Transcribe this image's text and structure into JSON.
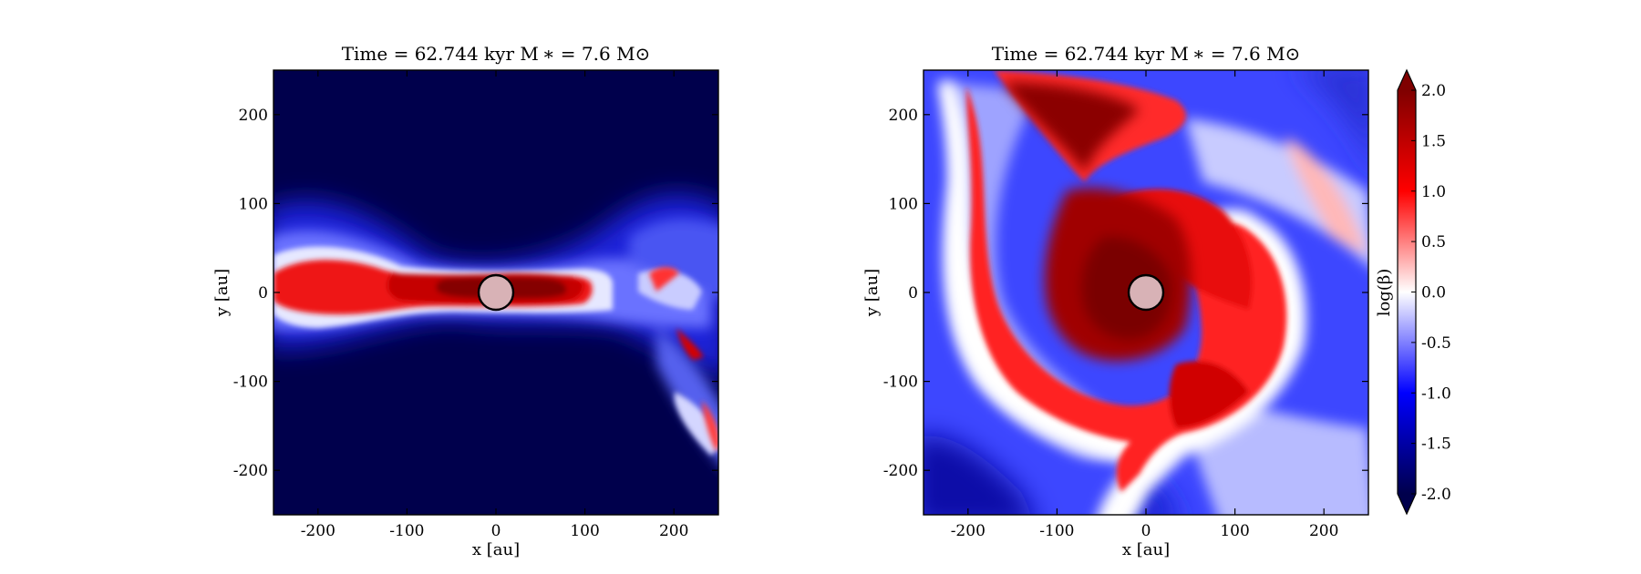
{
  "chart_data": [
    {
      "type": "heatmap",
      "title": "Time = 62.744 kyr    M ∗ = 7.6 M⊙",
      "xlabel": "x [au]",
      "ylabel": "y [au]",
      "xlim": [
        -250,
        250
      ],
      "ylim": [
        -250,
        250
      ],
      "xticks": [
        -200,
        -100,
        0,
        100,
        200
      ],
      "yticks": [
        -200,
        -100,
        0,
        100,
        200
      ],
      "xtick_labels": [
        "-200",
        "-100",
        "0",
        "100",
        "200"
      ],
      "ytick_labels": [
        "-200",
        "-100",
        "0",
        "100",
        "200"
      ],
      "view": "edge-on",
      "quantity": "log(β)",
      "background_value": -2.0,
      "features": [
        {
          "kind": "disk-midplane",
          "x_range": [
            -250,
            110
          ],
          "y_center": 0,
          "half_thickness": 25,
          "value": 1.5
        },
        {
          "kind": "inner-disk",
          "x_range": [
            -40,
            100
          ],
          "y_center": 0,
          "half_thickness": 15,
          "value": 2.0
        },
        {
          "kind": "sink",
          "x": 0,
          "y": 0,
          "radius": 20
        }
      ]
    },
    {
      "type": "heatmap",
      "title": "Time = 62.744 kyr    M ∗ = 7.6 M⊙",
      "xlabel": "x [au]",
      "ylabel": "y [au]",
      "xlim": [
        -250,
        250
      ],
      "ylim": [
        -250,
        250
      ],
      "xticks": [
        -200,
        -100,
        0,
        100,
        200
      ],
      "yticks": [
        -200,
        -100,
        0,
        100,
        200
      ],
      "xtick_labels": [
        "-200",
        "-100",
        "0",
        "100",
        "200"
      ],
      "ytick_labels": [
        "-200",
        "-100",
        "0",
        "100",
        "200"
      ],
      "view": "face-on",
      "quantity": "log(β)",
      "background_value": -1.0,
      "features": [
        {
          "kind": "central-core",
          "x": 0,
          "y": 0,
          "radius": 80,
          "value": 2.0
        },
        {
          "kind": "spiral-arm",
          "arms": 2,
          "value": 1.2
        },
        {
          "kind": "sink",
          "x": 0,
          "y": 0,
          "radius": 20
        }
      ]
    }
  ],
  "colorbar": {
    "label": "log(β)",
    "min": -2.0,
    "max": 2.0,
    "extend": "both",
    "ticks": [
      2.0,
      1.5,
      1.0,
      0.5,
      0.0,
      -0.5,
      -1.0,
      -1.5,
      -2.0
    ],
    "tick_labels": [
      "2.0",
      "1.5",
      "1.0",
      "0.5",
      "0.0",
      "-0.5",
      "-1.0",
      "-1.5",
      "-2.0"
    ],
    "colormap": "seismic",
    "colormap_stops": [
      "#00004c",
      "#0000ff",
      "#ffffff",
      "#ff0000",
      "#7f0000"
    ]
  }
}
